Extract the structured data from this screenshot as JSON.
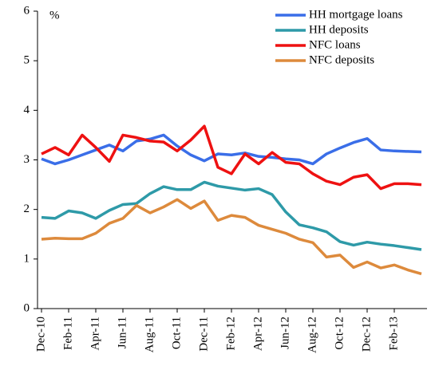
{
  "chart_data": {
    "type": "line",
    "y_label": "%",
    "categories": [
      "Dec-10",
      null,
      "Feb-11",
      null,
      "Apr-11",
      null,
      "Jun-11",
      null,
      "Aug-11",
      null,
      "Oct-11",
      null,
      "Dec-11",
      null,
      "Feb-12",
      null,
      "Apr-12",
      null,
      "Jun-12",
      null,
      "Aug-12",
      null,
      "Oct-12",
      null,
      "Dec-12",
      null,
      "Feb-13",
      null,
      null
    ],
    "series": [
      {
        "name": "HH mortgage loans",
        "color": "#3a6ee8",
        "values": [
          3.02,
          2.92,
          3.0,
          3.1,
          3.2,
          3.3,
          3.18,
          3.38,
          3.42,
          3.5,
          3.28,
          3.1,
          2.98,
          3.12,
          3.1,
          3.14,
          3.07,
          3.05,
          3.02,
          3.0,
          2.92,
          3.12,
          3.24,
          3.35,
          3.43,
          3.2,
          3.18,
          3.17,
          3.16
        ]
      },
      {
        "name": "HH deposits",
        "color": "#2e9aa8",
        "values": [
          1.84,
          1.82,
          1.97,
          1.93,
          1.82,
          1.98,
          2.1,
          2.12,
          2.32,
          2.46,
          2.4,
          2.4,
          2.55,
          2.47,
          2.43,
          2.39,
          2.42,
          2.3,
          1.95,
          1.69,
          1.63,
          1.55,
          1.35,
          1.28,
          1.34,
          1.3,
          1.27,
          1.23,
          1.19
        ]
      },
      {
        "name": "NFC loans",
        "color": "#ee1111",
        "values": [
          3.12,
          3.25,
          3.1,
          3.5,
          3.25,
          2.97,
          3.5,
          3.45,
          3.38,
          3.36,
          3.18,
          3.4,
          3.68,
          2.85,
          2.72,
          3.12,
          2.92,
          3.15,
          2.95,
          2.92,
          2.72,
          2.57,
          2.5,
          2.65,
          2.7,
          2.42,
          2.52,
          2.52,
          2.5
        ]
      },
      {
        "name": "NFC deposits",
        "color": "#dd8a3c",
        "values": [
          1.4,
          1.42,
          1.41,
          1.41,
          1.52,
          1.72,
          1.82,
          2.08,
          1.93,
          2.05,
          2.2,
          2.02,
          2.17,
          1.78,
          1.88,
          1.84,
          1.68,
          1.6,
          1.52,
          1.4,
          1.33,
          1.04,
          1.08,
          0.83,
          0.94,
          0.82,
          0.88,
          0.78,
          0.7
        ]
      }
    ],
    "ylim": [
      0,
      6
    ],
    "yticks": [
      0,
      1,
      2,
      3,
      4,
      5,
      6
    ],
    "grid": false,
    "legend": "top-right"
  }
}
